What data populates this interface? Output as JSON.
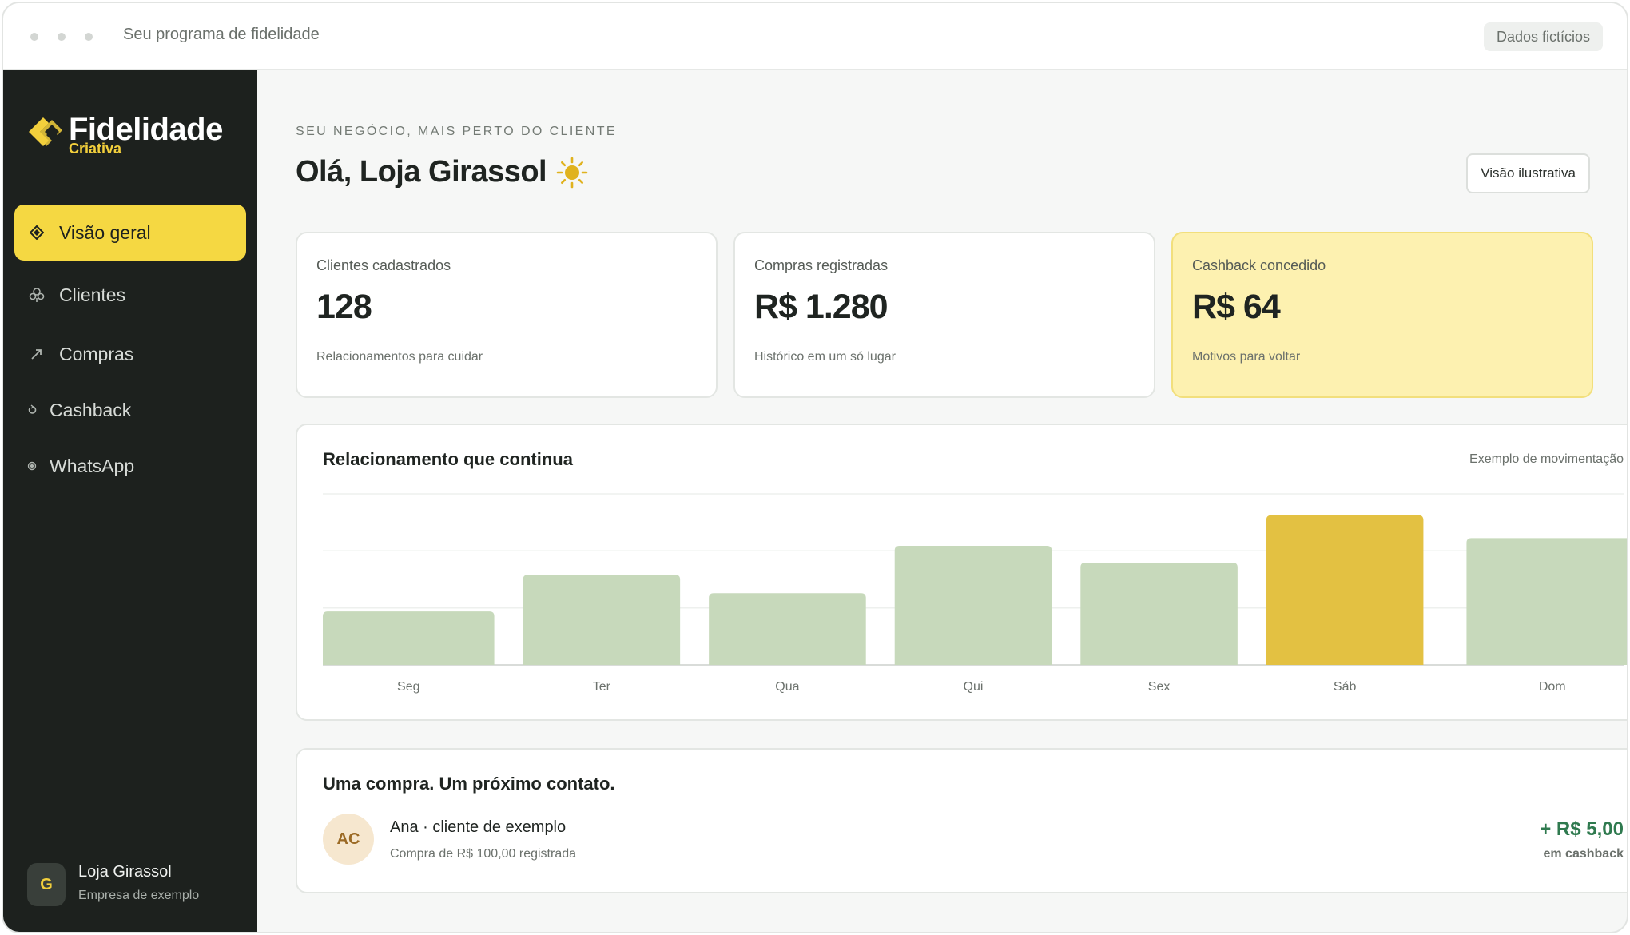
{
  "window": {
    "title": "Seu programa de fidelidade",
    "badge": "Dados fictícios"
  },
  "sidebar": {
    "logo": {
      "word": "Fidelidade",
      "sub": "Criativa"
    },
    "items": [
      {
        "label": "Visão geral",
        "icon": "diamond-icon",
        "active": true
      },
      {
        "label": "Clientes",
        "icon": "users-icon",
        "active": false
      },
      {
        "label": "Compras",
        "icon": "arrow-icon",
        "active": false
      },
      {
        "label": "Cashback",
        "icon": "refresh-icon",
        "active": false
      },
      {
        "label": "WhatsApp",
        "icon": "dot-icon",
        "active": false
      }
    ],
    "profile": {
      "initial": "G",
      "name": "Loja Girassol",
      "sub": "Empresa de exemplo"
    }
  },
  "header": {
    "eyebrow": "SEU NEGÓCIO, MAIS PERTO DO CLIENTE",
    "greeting": "Olá, Loja Girassol",
    "greeting_icon": "sun-icon",
    "button": "Visão ilustrativa"
  },
  "stats": [
    {
      "label": "Clientes cadastrados",
      "value": "128",
      "foot": "Relacionamentos para cuidar"
    },
    {
      "label": "Compras registradas",
      "value": "R$ 1.280",
      "foot": "Histórico em um só lugar"
    },
    {
      "label": "Cashback concedido",
      "value": "R$ 64",
      "foot": "Motivos para voltar"
    }
  ],
  "chart": {
    "title": "Relacionamento que continua",
    "note": "Exemplo de movimentação"
  },
  "chart_data": {
    "type": "bar",
    "title": "Relacionamento que continua",
    "categories": [
      "Seg",
      "Ter",
      "Qua",
      "Qui",
      "Sex",
      "Sáb",
      "Dom"
    ],
    "values": [
      35,
      59,
      47,
      78,
      67,
      98,
      83
    ],
    "highlight_index": 5,
    "ylim": [
      0,
      112
    ],
    "grid": true,
    "colors": {
      "bar": "#c7d9bb",
      "highlight": "#e3c142"
    }
  },
  "contact": {
    "title": "Uma compra. Um próximo contato.",
    "initials": "AC",
    "name": "Ana · cliente de exemplo",
    "sub": "Compra de R$ 100,00 registrada",
    "amount": "+ R$ 5,00",
    "amount_label": "em cashback"
  },
  "colors": {
    "accent": "#f5d842",
    "sidebar": "#1d211e",
    "positive": "#2f7a4f"
  }
}
